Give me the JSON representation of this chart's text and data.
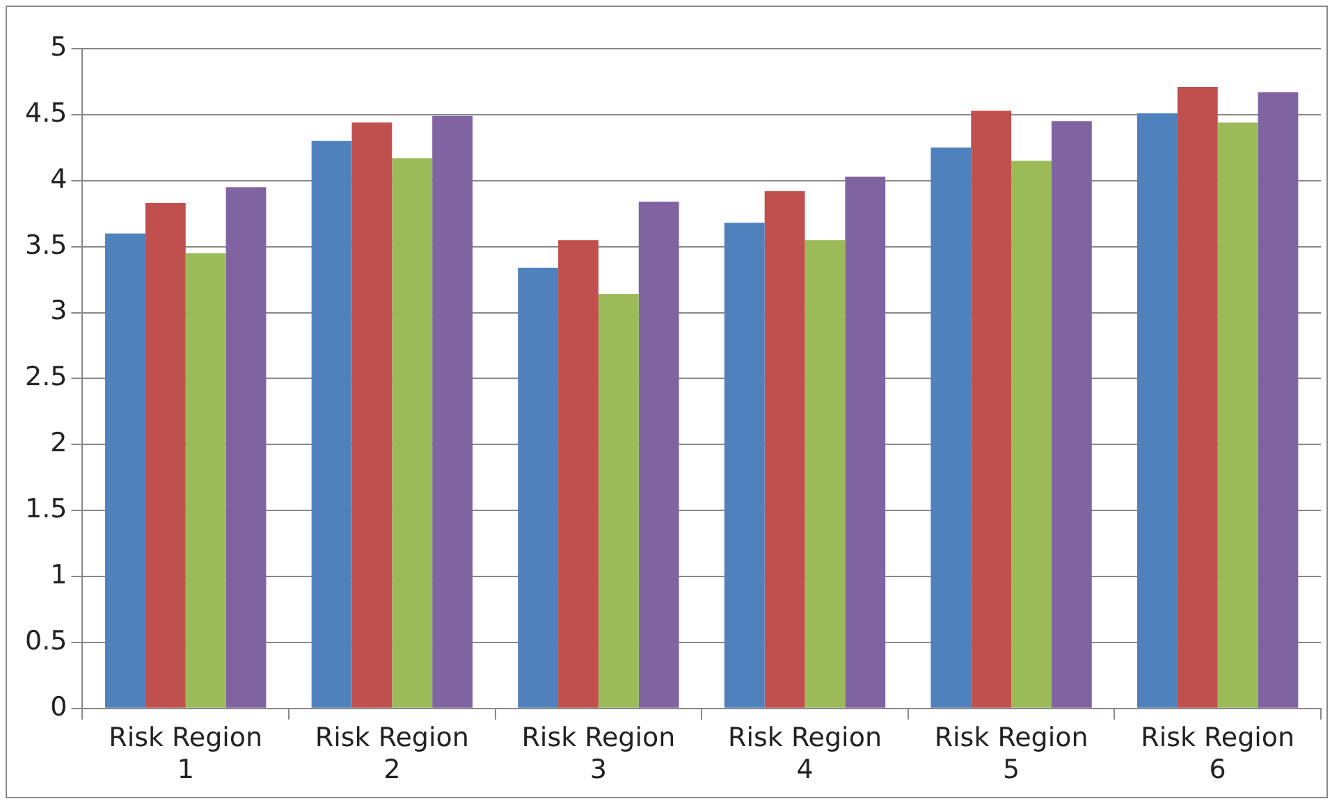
{
  "chart_data": {
    "type": "bar",
    "categories": [
      "Risk Region 1",
      "Risk Region 2",
      "Risk Region 3",
      "Risk Region 4",
      "Risk Region 5",
      "Risk Region 6"
    ],
    "series": [
      {
        "color": "#4f81bd",
        "values": [
          3.6,
          4.3,
          3.34,
          3.68,
          4.25,
          4.51
        ]
      },
      {
        "color": "#c0504d",
        "values": [
          3.83,
          4.44,
          3.55,
          3.92,
          4.53,
          4.71
        ]
      },
      {
        "color": "#9bbb59",
        "values": [
          3.45,
          4.17,
          3.14,
          3.55,
          4.15,
          4.44
        ]
      },
      {
        "color": "#8064a2",
        "values": [
          3.95,
          4.49,
          3.84,
          4.03,
          4.45,
          4.67
        ]
      }
    ],
    "ylim": [
      0,
      5
    ],
    "yticks": [
      0,
      0.5,
      1,
      1.5,
      2,
      2.5,
      3,
      3.5,
      4,
      4.5,
      5
    ],
    "grid": "y",
    "legend": false
  }
}
